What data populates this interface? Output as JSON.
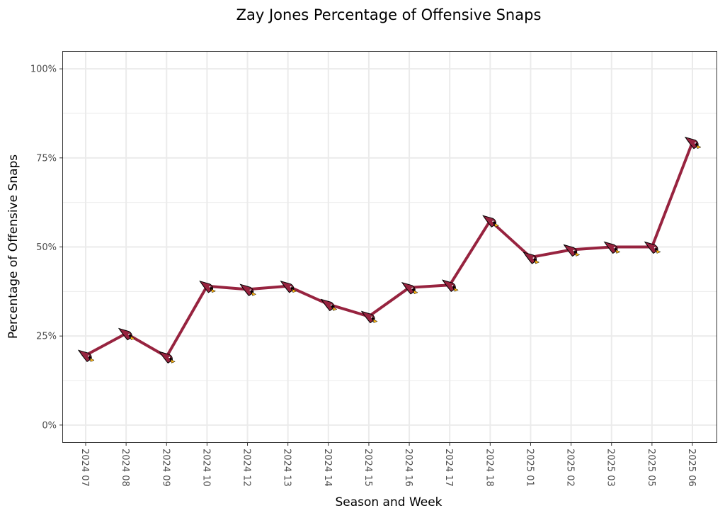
{
  "chart_data": {
    "type": "line",
    "title": "Zay Jones Percentage of Offensive Snaps",
    "xlabel": "Season and Week",
    "ylabel": "Percentage of Offensive Snaps",
    "categories": [
      "2024 07",
      "2024 08",
      "2024 09",
      "2024 10",
      "2024 12",
      "2024 13",
      "2024 14",
      "2024 15",
      "2024 16",
      "2024 17",
      "2024 18",
      "2025 01",
      "2025 02",
      "2025 03",
      "2025 05",
      "2025 06"
    ],
    "values": [
      19.6,
      25.7,
      19.2,
      39.0,
      38.1,
      39.0,
      33.9,
      30.5,
      38.6,
      39.3,
      57.4,
      47.1,
      49.2,
      50.0,
      50.0,
      79.4
    ],
    "ylim": [
      -5,
      105
    ],
    "yticks": [
      0,
      25,
      50,
      75,
      100
    ],
    "ytick_labels": [
      "0%",
      "25%",
      "50%",
      "75%",
      "100%"
    ],
    "grid": true,
    "marker": "cardinals-logo-icon",
    "colors": {
      "line": "#97233F",
      "grid": "#ebebeb",
      "border": "#333333"
    }
  }
}
